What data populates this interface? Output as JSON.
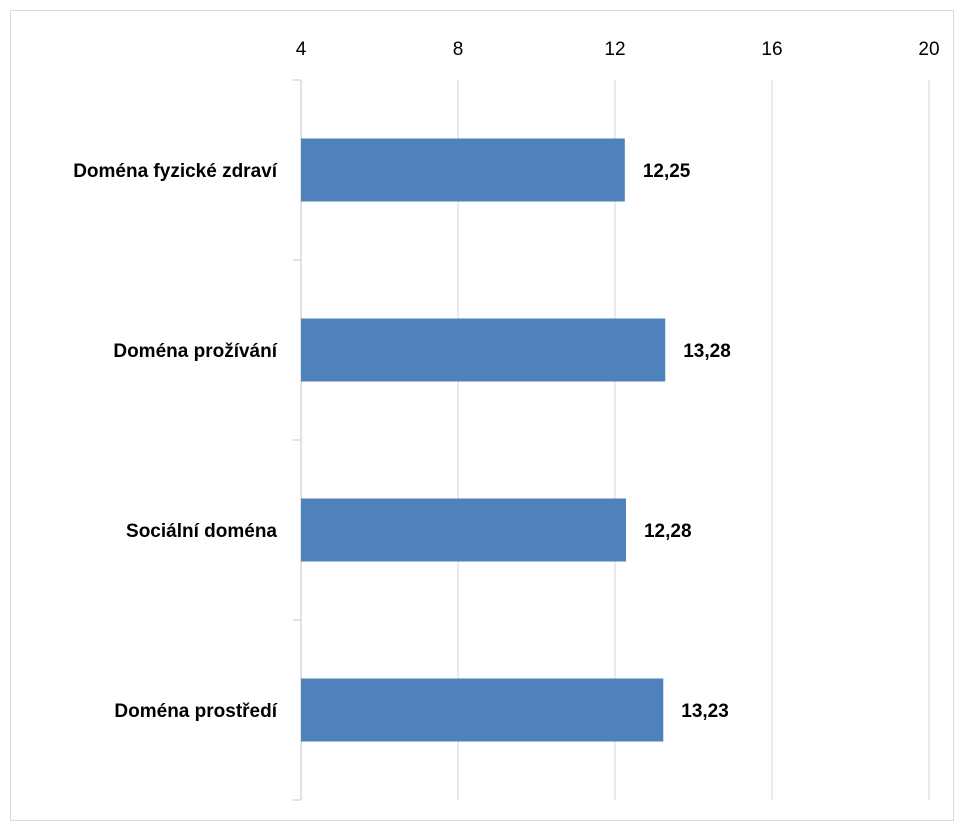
{
  "chart_data": {
    "type": "bar",
    "orientation": "horizontal",
    "categories": [
      "Doména fyzické zdraví",
      "Doména prožívání",
      "Sociální doména",
      "Doména prostředí"
    ],
    "values": [
      12.25,
      13.28,
      12.28,
      13.23
    ],
    "data_labels": [
      "12,25",
      "13,28",
      "12,28",
      "13,23"
    ],
    "xlim": [
      4,
      20
    ],
    "x_ticks": [
      4,
      8,
      12,
      16,
      20
    ],
    "x_tick_labels": [
      "4",
      "8",
      "12",
      "16",
      "20"
    ],
    "x_axis_position": "top",
    "grid": true,
    "bar_color": "#4f81bd",
    "grid_color": "#dbe5ee"
  }
}
